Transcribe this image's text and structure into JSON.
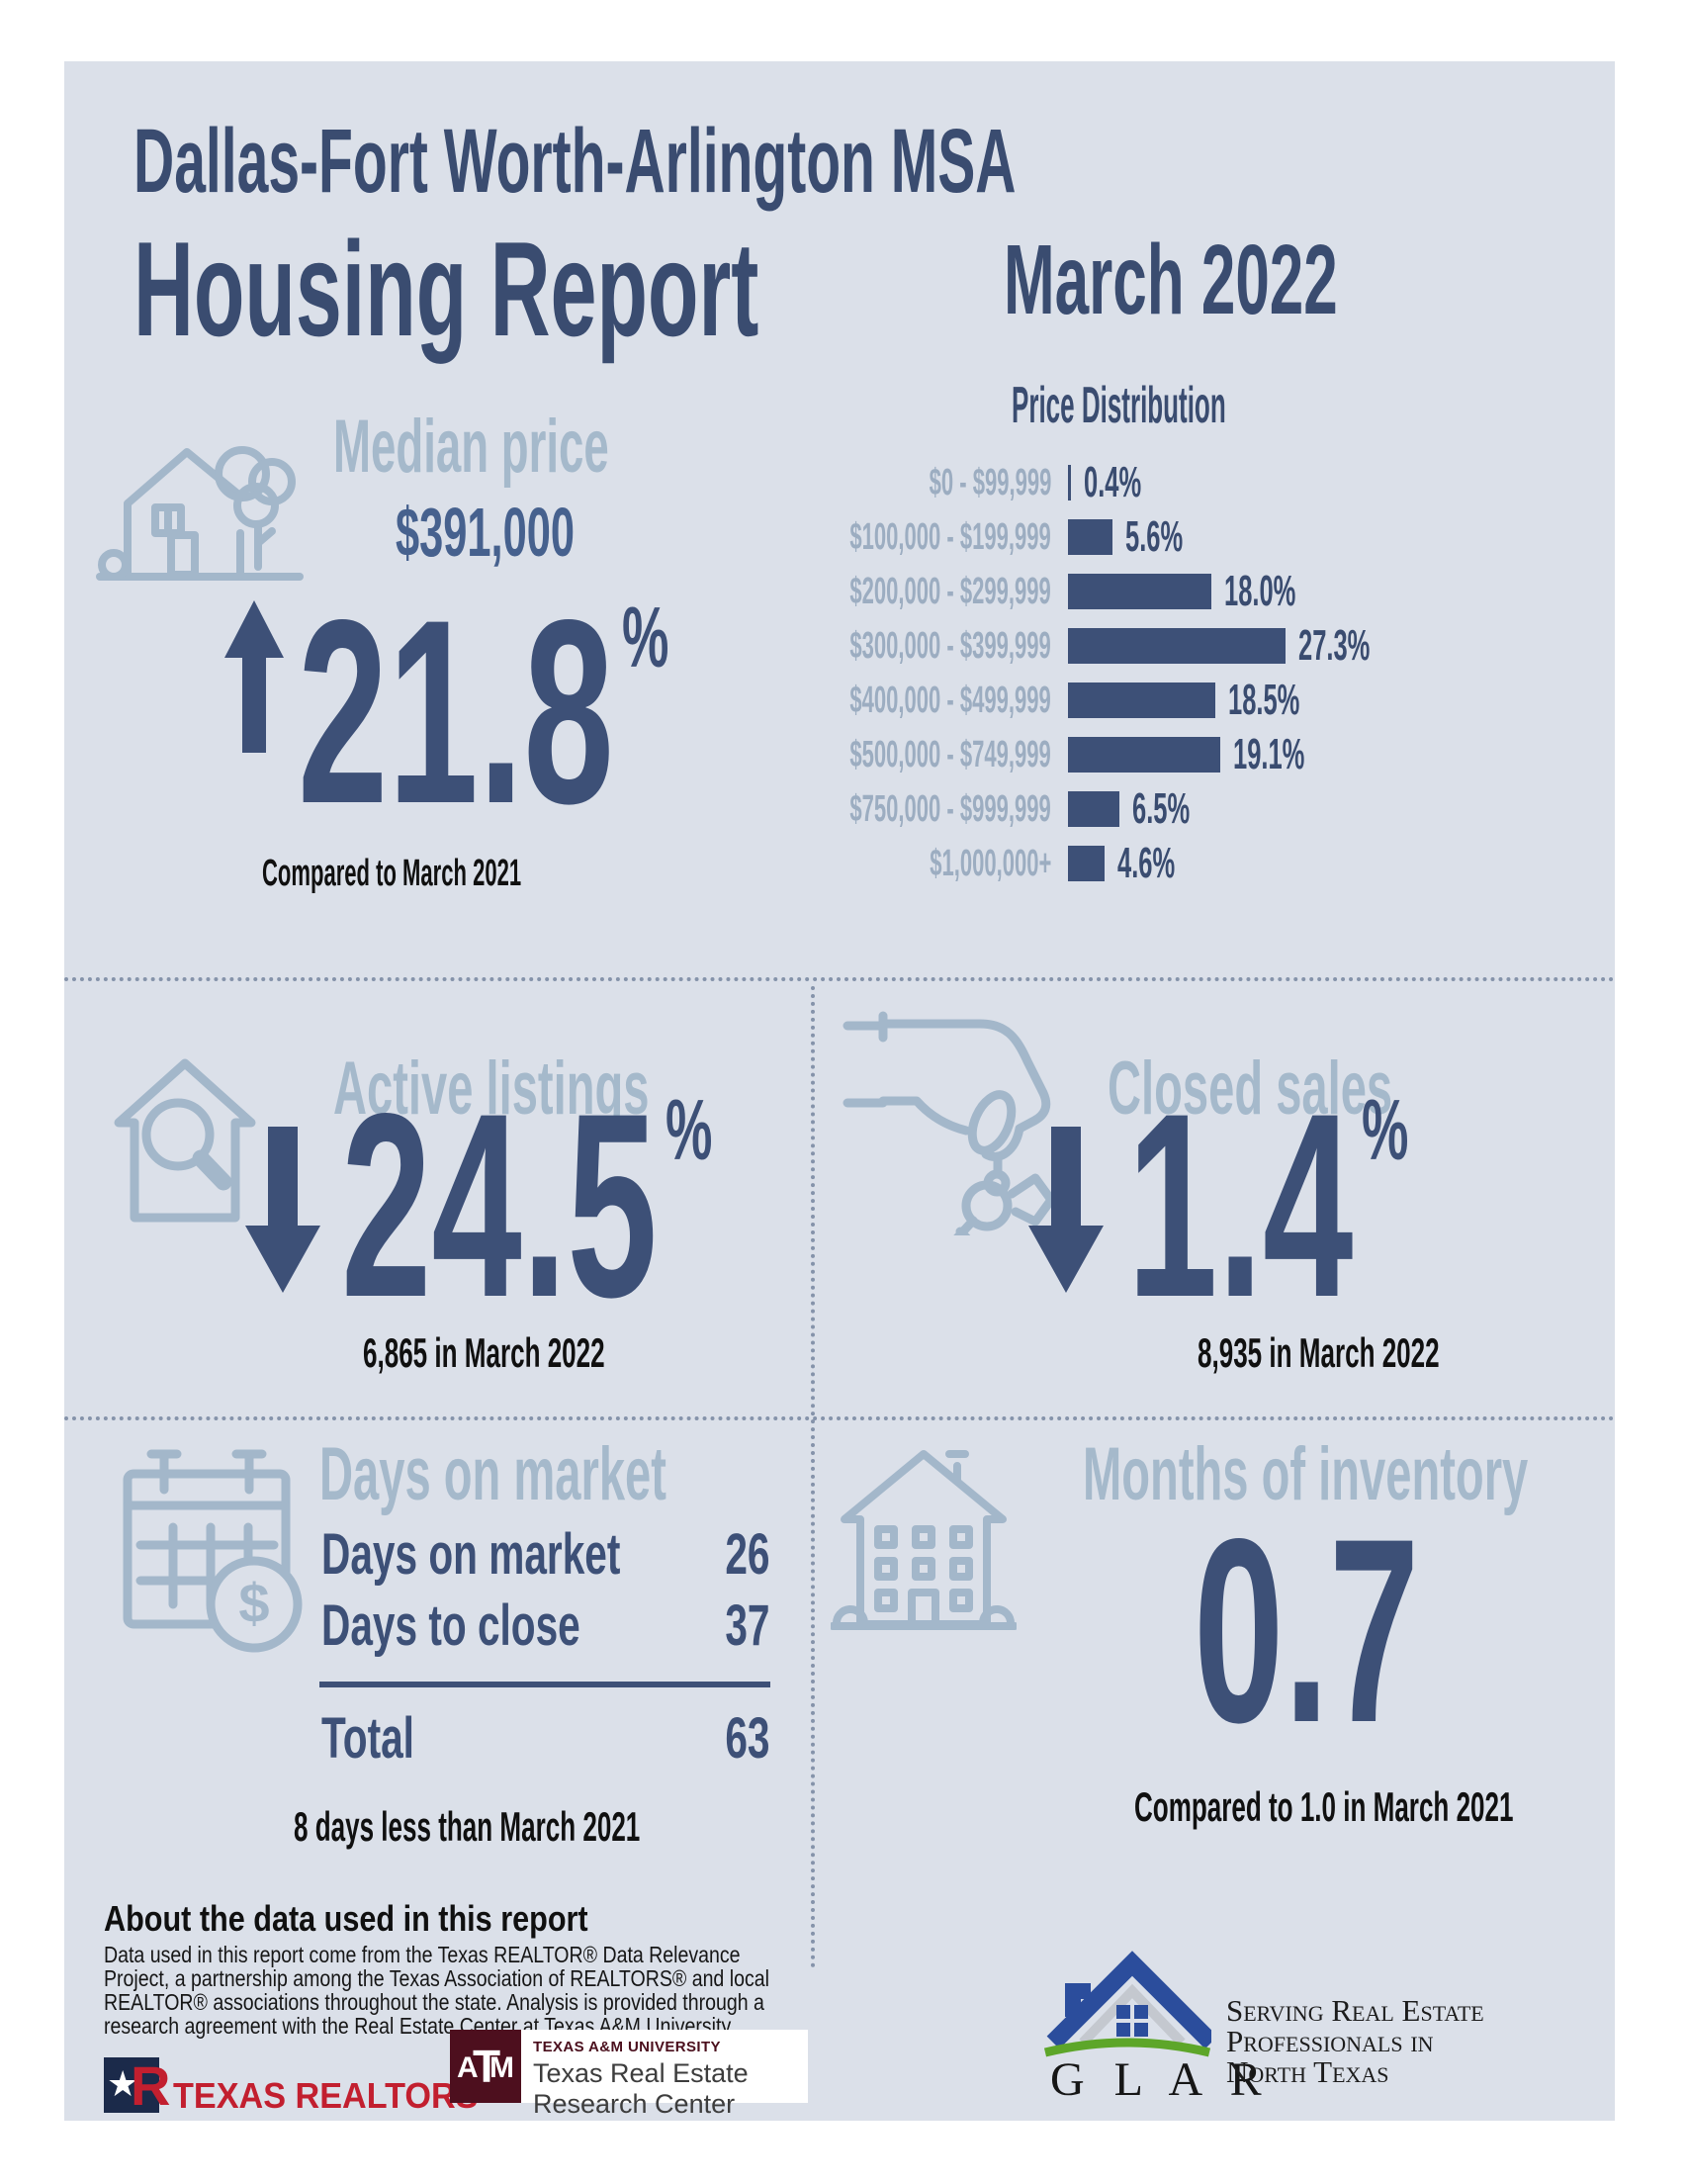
{
  "page": {
    "region": "Dallas-Fort Worth-Arlington MSA",
    "title": "Housing Report",
    "period": "March 2022"
  },
  "colors": {
    "card_bg": "#dbe0e9",
    "title_navy": "#3a4c70",
    "stat_navy": "#3d5077",
    "value_navy": "#46618e",
    "light_heading": "#a5b9cb",
    "chart_label": "#9cadc1",
    "icon_blue": "#a3b7ca",
    "black_text": "#101010",
    "divider": "#8593aa",
    "realtor_red": "#c21f2f",
    "tamu_maroon": "#4d0f1e",
    "glar_blue": "#2b4d9c",
    "glar_green": "#5da629"
  },
  "median_price": {
    "heading": "Median price",
    "value": "$391,000",
    "direction": "up",
    "change": "21.8",
    "percent": "%",
    "note": "Compared to March 2021"
  },
  "chart_data": {
    "type": "bar",
    "orientation": "horizontal",
    "title": "Price Distribution",
    "categories": [
      "$0 - $99,999",
      "$100,000 - $199,999",
      "$200,000 - $299,999",
      "$300,000 - $399,999",
      "$400,000 - $499,999",
      "$500,000 - $749,999",
      "$750,000 - $999,999",
      "$1,000,000+"
    ],
    "values": [
      0.4,
      5.6,
      18.0,
      27.3,
      18.5,
      19.1,
      6.5,
      4.6
    ],
    "value_labels": [
      "0.4%",
      "5.6%",
      "18.0%",
      "27.3%",
      "18.5%",
      "19.1%",
      "6.5%",
      "4.6%"
    ],
    "unit": "%",
    "xlim": [
      0,
      30
    ],
    "grid": false,
    "legend": false,
    "bar_color": "#3d5077",
    "label_color": "#9cadc1"
  },
  "active_listings": {
    "heading": "Active listings",
    "direction": "down",
    "change": "24.5",
    "percent": "%",
    "note": "6,865 in March 2022"
  },
  "closed_sales": {
    "heading": "Closed sales",
    "direction": "down",
    "change": "1.4",
    "percent": "%",
    "note": "8,935 in March 2022"
  },
  "days_on_market": {
    "heading": "Days on market",
    "rows": [
      {
        "label": "Days on market",
        "value": "26"
      },
      {
        "label": "Days to close",
        "value": "37"
      }
    ],
    "total_label": "Total",
    "total_value": "63",
    "note": "8 days less than March 2021"
  },
  "months_of_inventory": {
    "heading": "Months of inventory",
    "value": "0.7",
    "note": "Compared to 1.0 in March 2021"
  },
  "about": {
    "heading": "About the data used in this report",
    "body": "Data used in this report come from the Texas REALTOR® Data Relevance Project, a partnership among the Texas Association of REALTORS® and local REALTOR® associations throughout the state. Analysis is provided through a research agreement with the Real Estate Center at Texas A&M University."
  },
  "footer": {
    "texas_realtors": "TEXAS REALTORS",
    "registered_mark": "®",
    "tamu_monogram": [
      "A",
      "T",
      "M"
    ],
    "tamu_university": "TEXAS A&M UNIVERSITY",
    "tamu_center": "Texas Real Estate Research Center",
    "glar_name": "G L A R",
    "glar_tagline": [
      "Serving Real Estate",
      "Professionals in",
      "North Texas"
    ]
  }
}
